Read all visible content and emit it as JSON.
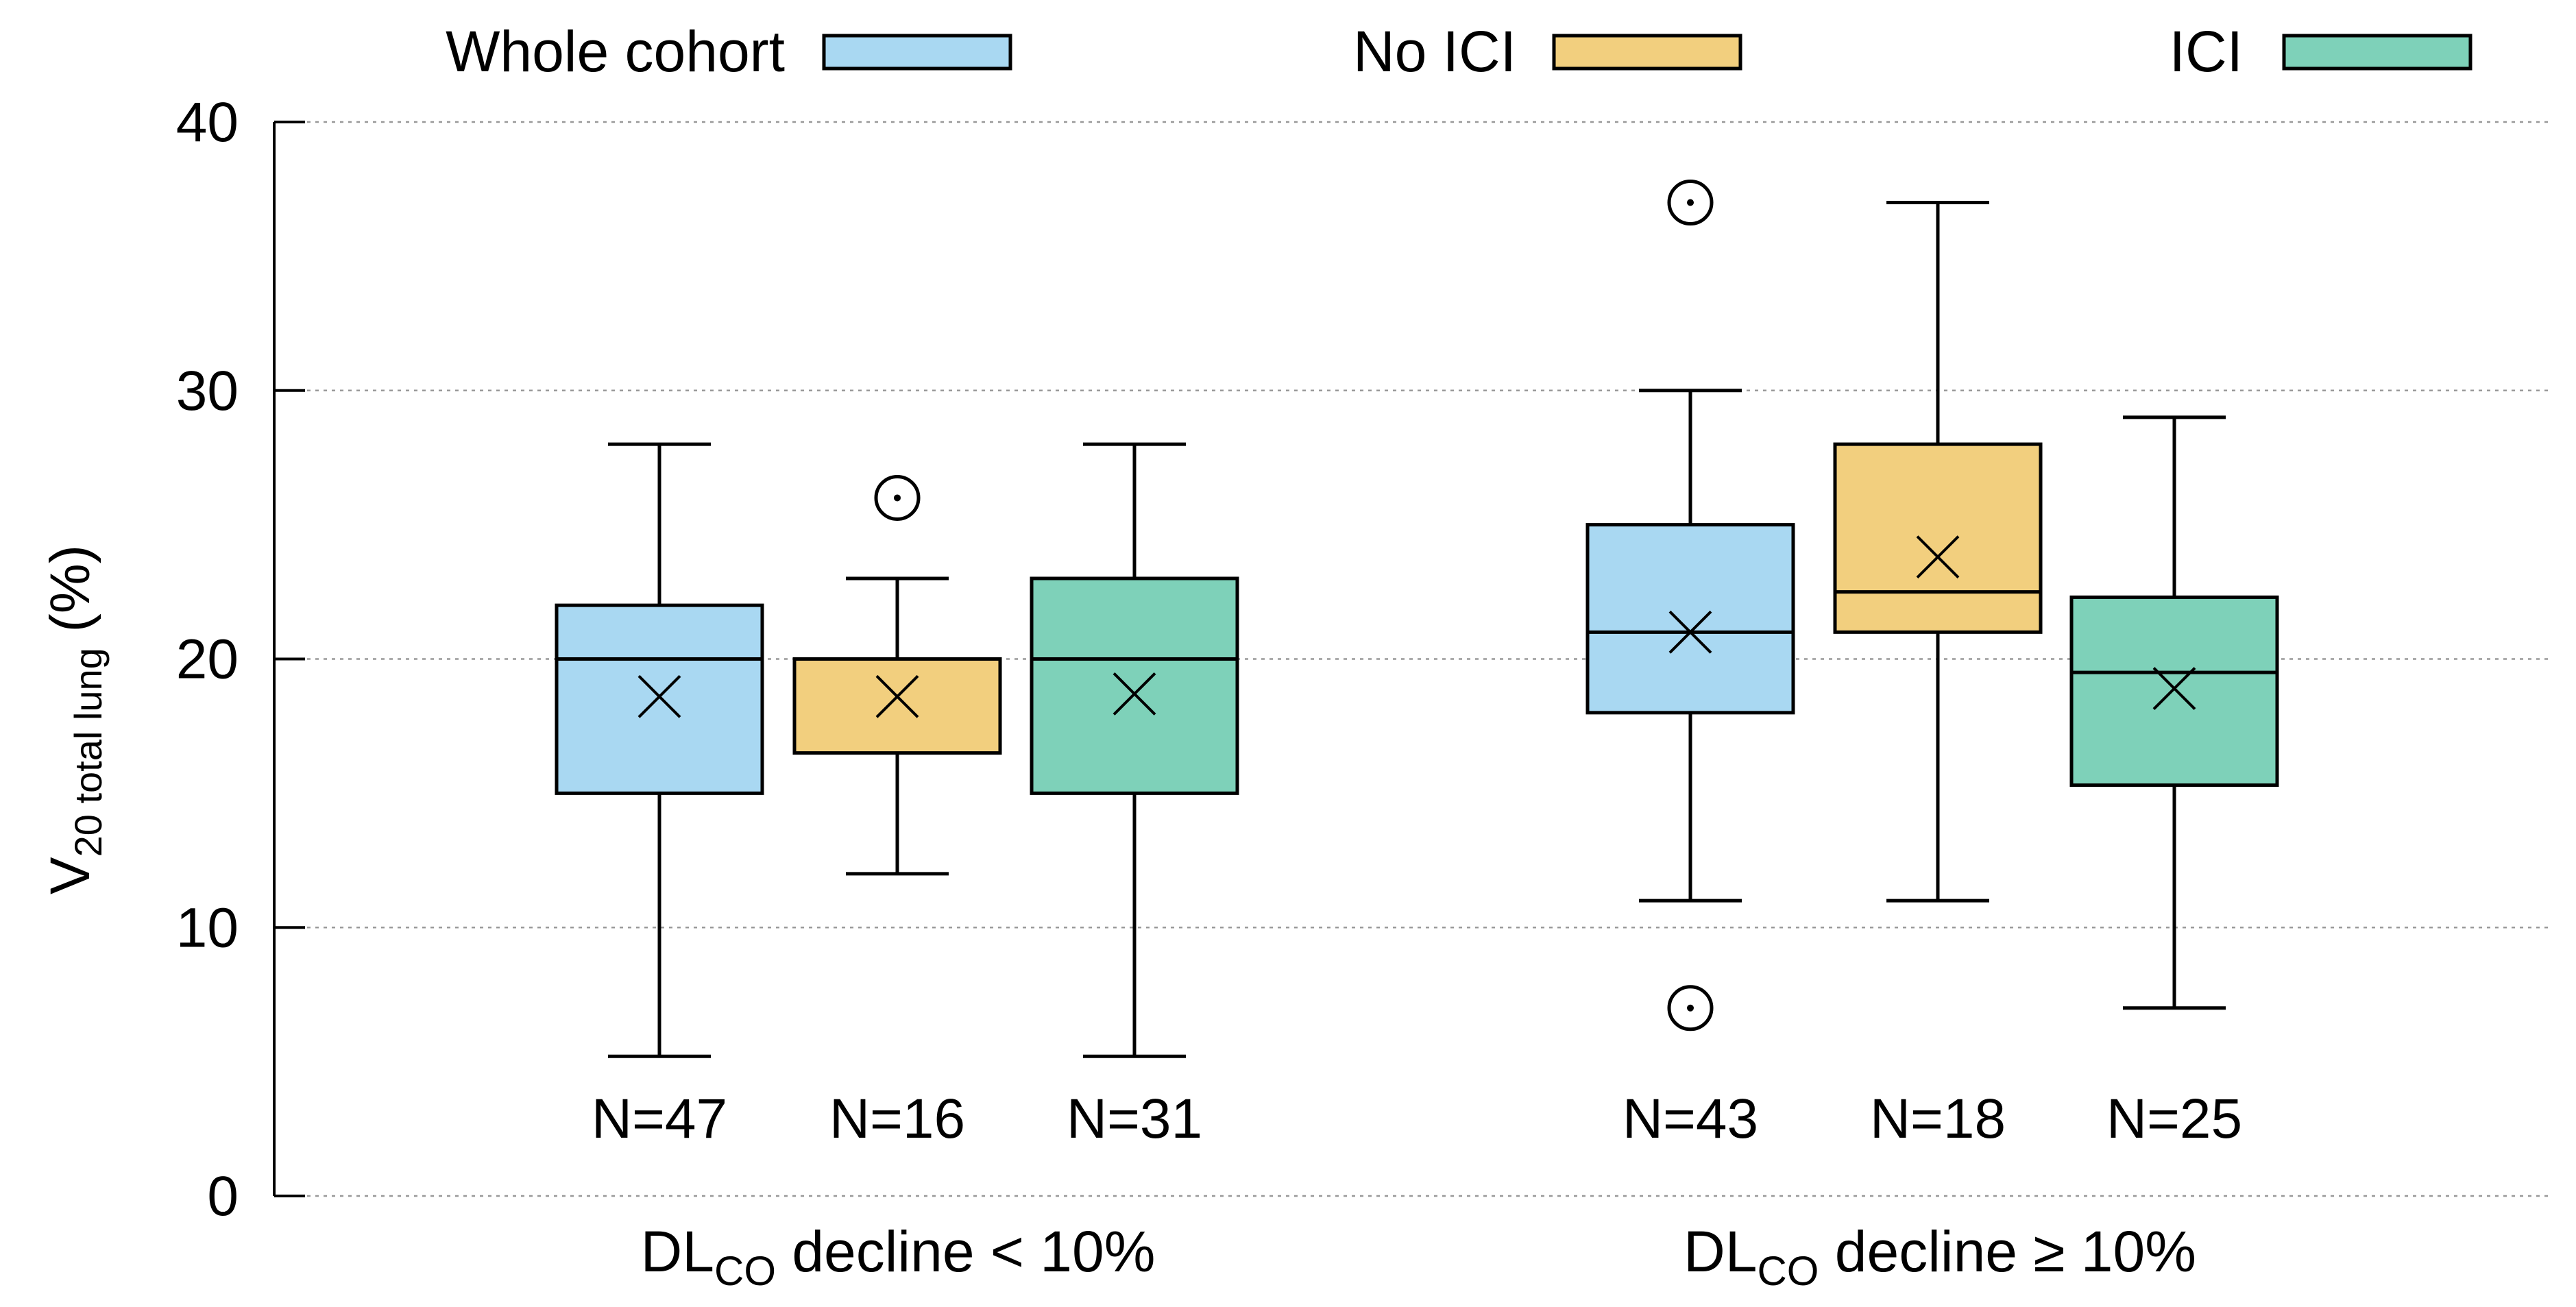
{
  "chart_data": {
    "type": "box",
    "ylabel": {
      "main": "V",
      "sub": "20 total lung",
      "suffix": " (%)"
    },
    "ylim": [
      0,
      40
    ],
    "yticks": [
      0,
      10,
      20,
      30,
      40
    ],
    "grid": true,
    "legend_position": "top",
    "series": [
      {
        "name": "Whole cohort",
        "color": "#a9d8f2"
      },
      {
        "name": "No ICI",
        "color": "#f2cf7e"
      },
      {
        "name": "ICI",
        "color": "#7ed1b9"
      }
    ],
    "groups": [
      {
        "label": {
          "main": "DL",
          "sub": "CO",
          "rest": " decline < 10%"
        },
        "boxes": [
          {
            "series": 0,
            "n_label": "N=47",
            "whisker_low": 5.2,
            "q1": 15,
            "median": 20,
            "q3": 22,
            "whisker_high": 28,
            "mean": 18.6,
            "outliers": []
          },
          {
            "series": 1,
            "n_label": "N=16",
            "whisker_low": 12,
            "q1": 16.5,
            "median": 20,
            "q3": 20,
            "whisker_high": 23,
            "mean": 18.6,
            "outliers": [
              26
            ]
          },
          {
            "series": 2,
            "n_label": "N=31",
            "whisker_low": 5.2,
            "q1": 15,
            "median": 20,
            "q3": 23,
            "whisker_high": 28,
            "mean": 18.7,
            "outliers": []
          }
        ]
      },
      {
        "label": {
          "main": "DL",
          "sub": "CO",
          "rest": " decline ≥ 10%"
        },
        "boxes": [
          {
            "series": 0,
            "n_label": "N=43",
            "whisker_low": 11,
            "q1": 18,
            "median": 21,
            "q3": 25,
            "whisker_high": 30,
            "mean": 21,
            "outliers": [
              37,
              7
            ]
          },
          {
            "series": 1,
            "n_label": "N=18",
            "whisker_low": 11,
            "q1": 21,
            "median": 22.5,
            "q3": 28,
            "whisker_high": 37,
            "mean": 23.8,
            "outliers": []
          },
          {
            "series": 2,
            "n_label": "N=25",
            "whisker_low": 7,
            "q1": 15.3,
            "median": 19.5,
            "q3": 22.3,
            "whisker_high": 29,
            "mean": 18.9,
            "outliers": []
          }
        ]
      }
    ]
  }
}
